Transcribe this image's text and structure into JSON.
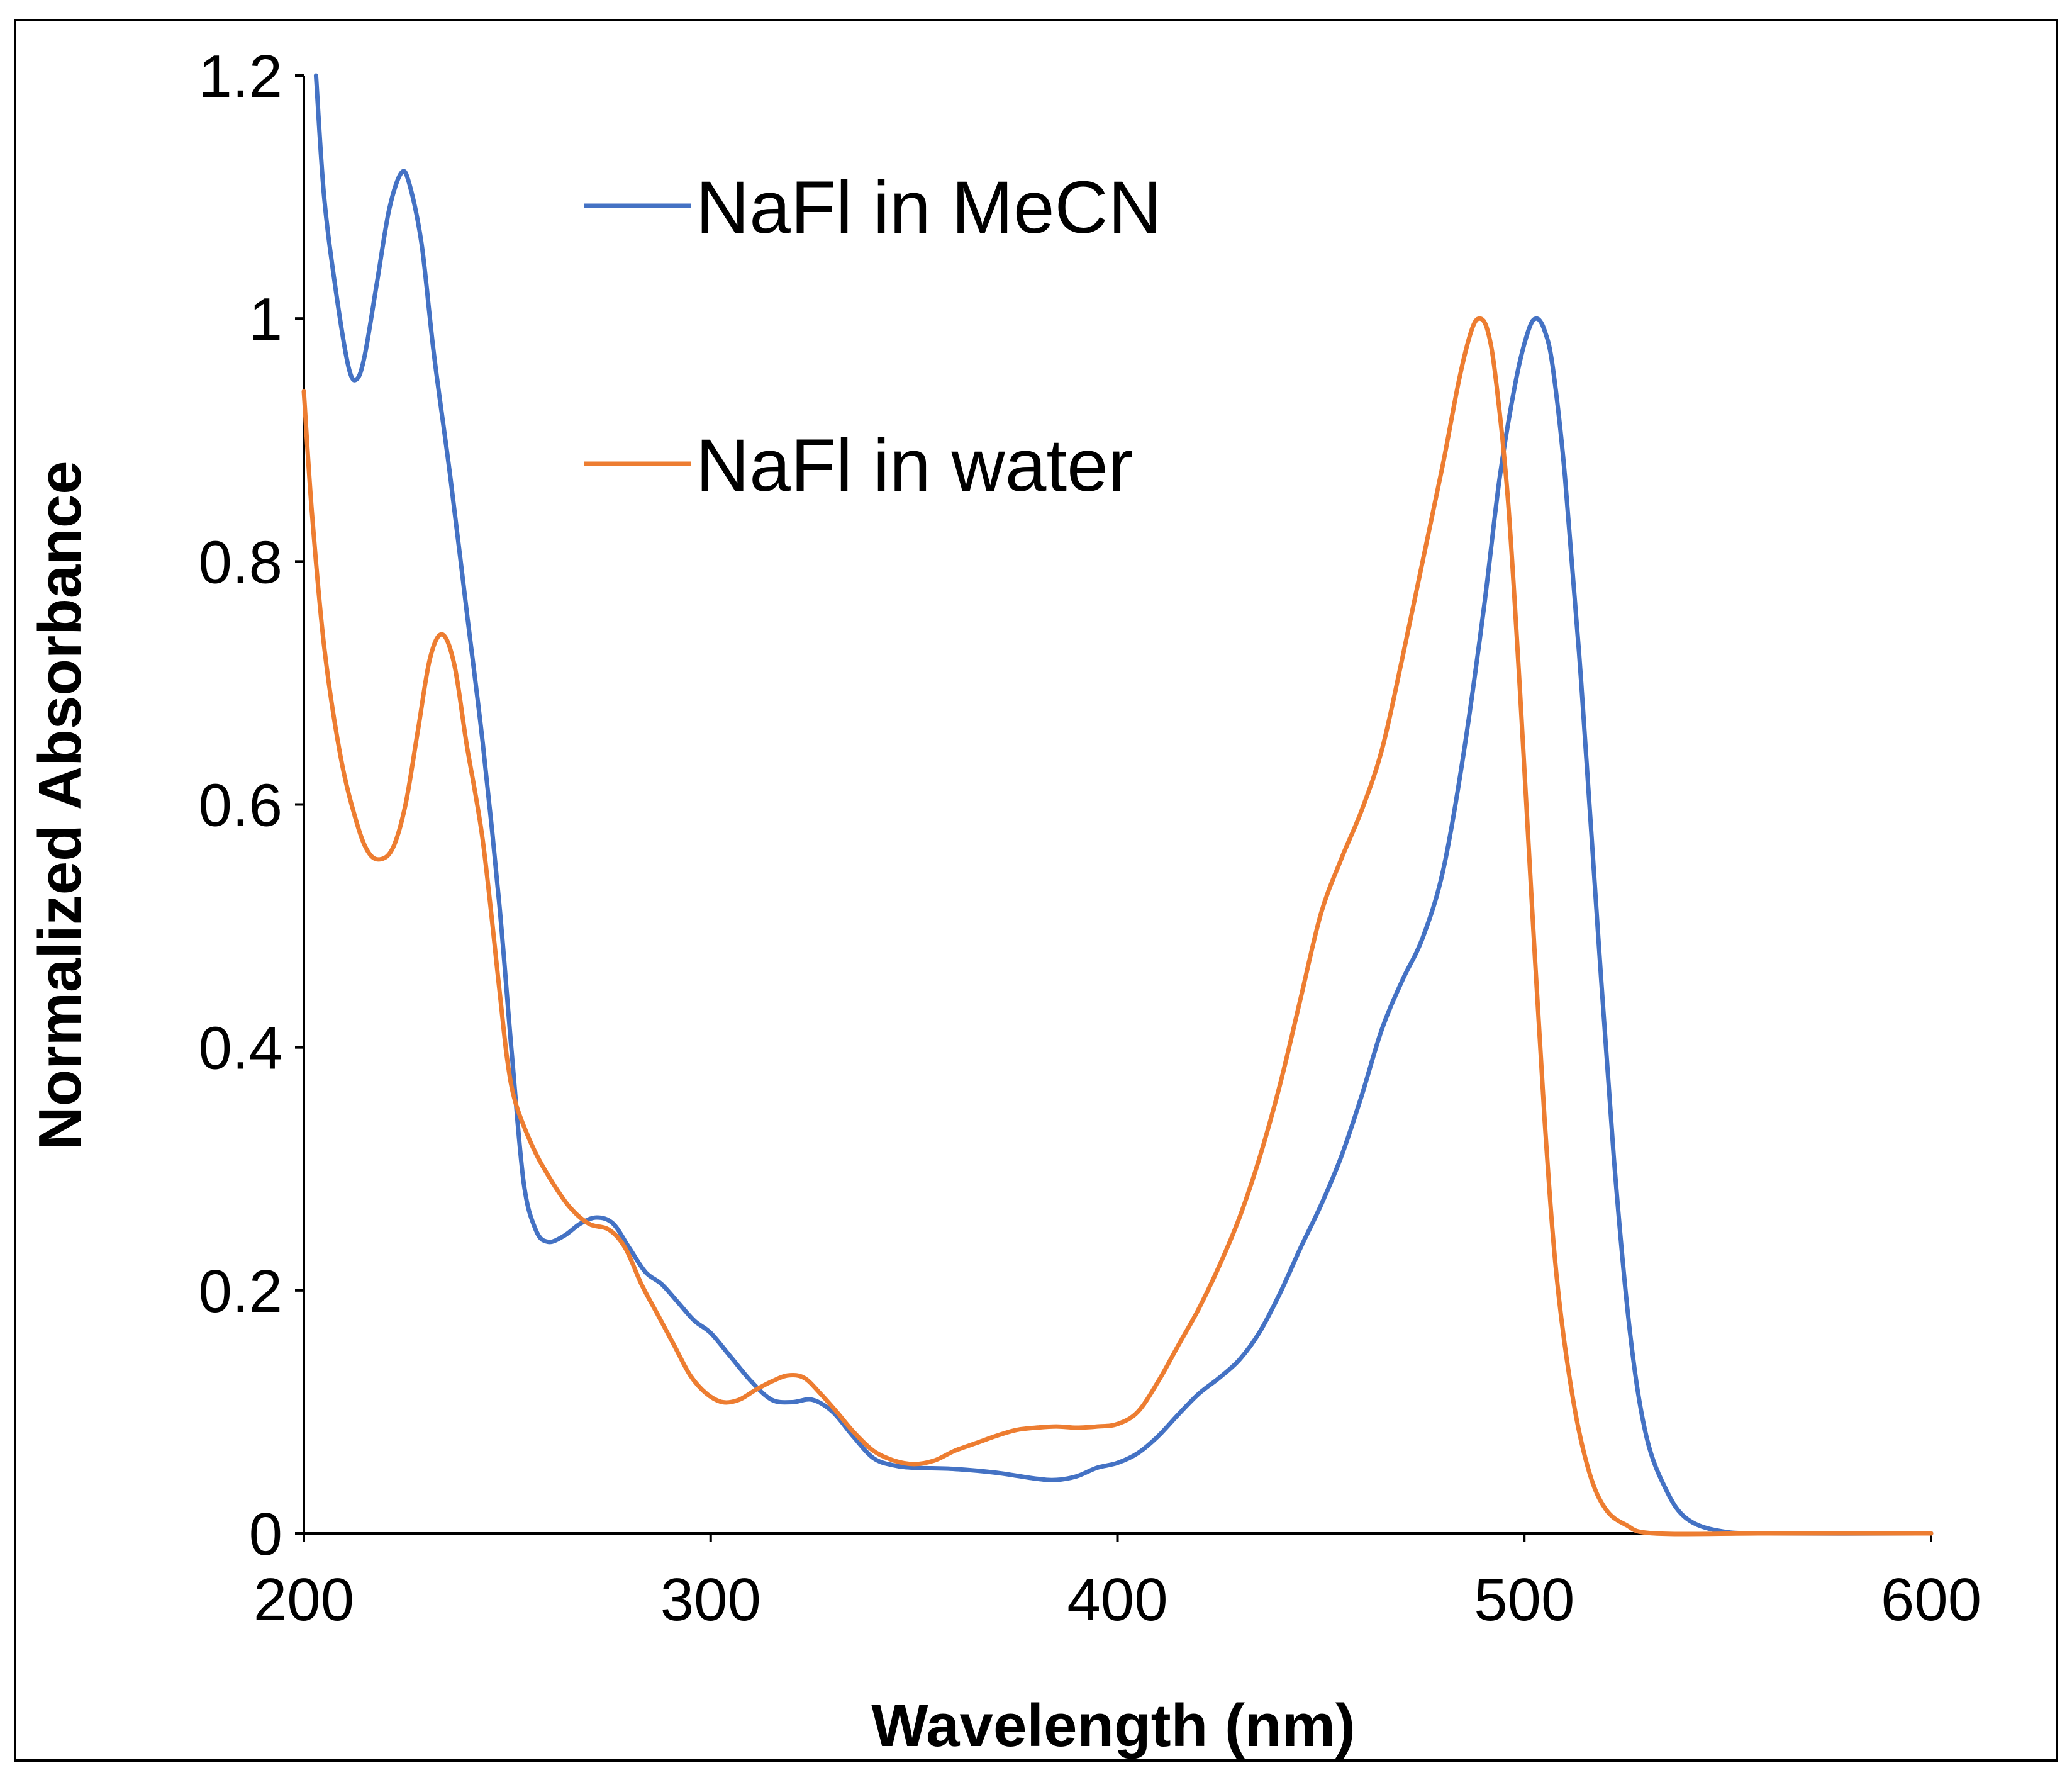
{
  "chart_data": {
    "type": "line",
    "title": "",
    "xlabel": "Wavelength (nm)",
    "ylabel": "Normalized Absorbance",
    "xlim": [
      200,
      600
    ],
    "ylim": [
      0,
      1.2
    ],
    "x_ticks": [
      200,
      300,
      400,
      500,
      600
    ],
    "x_tick_labels": [
      "200",
      "300",
      "400",
      "500",
      "600"
    ],
    "y_ticks": [
      0,
      0.2,
      0.4,
      0.6,
      0.8,
      1,
      1.2
    ],
    "y_tick_labels": [
      "0",
      "0.2",
      "0.4",
      "0.6",
      "0.8",
      "1",
      "1.2"
    ],
    "grid": false,
    "legend_position": "top-center",
    "series": [
      {
        "name": "NaFl in MeCN",
        "color": "#4472C4",
        "points": [
          [
            203,
            1.2
          ],
          [
            205,
            1.1
          ],
          [
            208,
            1.02
          ],
          [
            211,
            0.96
          ],
          [
            213,
            0.95
          ],
          [
            215,
            0.97
          ],
          [
            218,
            1.03
          ],
          [
            221,
            1.09
          ],
          [
            224,
            1.12
          ],
          [
            226,
            1.11
          ],
          [
            229,
            1.06
          ],
          [
            232,
            0.97
          ],
          [
            236,
            0.87
          ],
          [
            240,
            0.76
          ],
          [
            244,
            0.65
          ],
          [
            248,
            0.52
          ],
          [
            251,
            0.4
          ],
          [
            254,
            0.29
          ],
          [
            257,
            0.25
          ],
          [
            260,
            0.24
          ],
          [
            264,
            0.245
          ],
          [
            268,
            0.255
          ],
          [
            272,
            0.26
          ],
          [
            276,
            0.255
          ],
          [
            280,
            0.235
          ],
          [
            284,
            0.215
          ],
          [
            288,
            0.205
          ],
          [
            292,
            0.19
          ],
          [
            296,
            0.175
          ],
          [
            300,
            0.165
          ],
          [
            305,
            0.145
          ],
          [
            310,
            0.125
          ],
          [
            315,
            0.11
          ],
          [
            320,
            0.108
          ],
          [
            325,
            0.11
          ],
          [
            330,
            0.1
          ],
          [
            335,
            0.08
          ],
          [
            340,
            0.062
          ],
          [
            345,
            0.056
          ],
          [
            350,
            0.054
          ],
          [
            360,
            0.053
          ],
          [
            370,
            0.05
          ],
          [
            380,
            0.045
          ],
          [
            385,
            0.044
          ],
          [
            390,
            0.047
          ],
          [
            395,
            0.054
          ],
          [
            400,
            0.058
          ],
          [
            405,
            0.066
          ],
          [
            410,
            0.08
          ],
          [
            415,
            0.098
          ],
          [
            420,
            0.115
          ],
          [
            425,
            0.128
          ],
          [
            430,
            0.143
          ],
          [
            435,
            0.166
          ],
          [
            440,
            0.198
          ],
          [
            445,
            0.235
          ],
          [
            450,
            0.27
          ],
          [
            455,
            0.31
          ],
          [
            460,
            0.36
          ],
          [
            465,
            0.415
          ],
          [
            470,
            0.455
          ],
          [
            475,
            0.49
          ],
          [
            480,
            0.545
          ],
          [
            485,
            0.64
          ],
          [
            490,
            0.76
          ],
          [
            494,
            0.87
          ],
          [
            498,
            0.95
          ],
          [
            501,
            0.99
          ],
          [
            503,
            1.0
          ],
          [
            505,
            0.99
          ],
          [
            507,
            0.96
          ],
          [
            510,
            0.87
          ],
          [
            514,
            0.7
          ],
          [
            518,
            0.5
          ],
          [
            522,
            0.31
          ],
          [
            526,
            0.165
          ],
          [
            530,
            0.08
          ],
          [
            535,
            0.035
          ],
          [
            540,
            0.012
          ],
          [
            548,
            0.002
          ],
          [
            560,
            0.0
          ],
          [
            600,
            0.0
          ]
        ]
      },
      {
        "name": "NaFl in water",
        "color": "#ED7D31",
        "points": [
          [
            200,
            0.94
          ],
          [
            202,
            0.84
          ],
          [
            205,
            0.73
          ],
          [
            209,
            0.64
          ],
          [
            213,
            0.585
          ],
          [
            216,
            0.56
          ],
          [
            219,
            0.555
          ],
          [
            222,
            0.565
          ],
          [
            225,
            0.6
          ],
          [
            228,
            0.66
          ],
          [
            231,
            0.72
          ],
          [
            234,
            0.74
          ],
          [
            237,
            0.715
          ],
          [
            240,
            0.65
          ],
          [
            244,
            0.57
          ],
          [
            248,
            0.45
          ],
          [
            250,
            0.39
          ],
          [
            252,
            0.355
          ],
          [
            256,
            0.32
          ],
          [
            260,
            0.295
          ],
          [
            265,
            0.27
          ],
          [
            270,
            0.255
          ],
          [
            275,
            0.25
          ],
          [
            279,
            0.235
          ],
          [
            283,
            0.205
          ],
          [
            287,
            0.18
          ],
          [
            291,
            0.155
          ],
          [
            295,
            0.13
          ],
          [
            299,
            0.115
          ],
          [
            303,
            0.108
          ],
          [
            307,
            0.11
          ],
          [
            311,
            0.118
          ],
          [
            315,
            0.125
          ],
          [
            319,
            0.13
          ],
          [
            323,
            0.128
          ],
          [
            327,
            0.115
          ],
          [
            331,
            0.1
          ],
          [
            335,
            0.084
          ],
          [
            340,
            0.068
          ],
          [
            345,
            0.06
          ],
          [
            350,
            0.057
          ],
          [
            355,
            0.06
          ],
          [
            360,
            0.068
          ],
          [
            365,
            0.074
          ],
          [
            370,
            0.08
          ],
          [
            375,
            0.085
          ],
          [
            380,
            0.087
          ],
          [
            385,
            0.088
          ],
          [
            390,
            0.087
          ],
          [
            395,
            0.088
          ],
          [
            400,
            0.09
          ],
          [
            405,
            0.1
          ],
          [
            410,
            0.125
          ],
          [
            415,
            0.155
          ],
          [
            420,
            0.185
          ],
          [
            425,
            0.22
          ],
          [
            430,
            0.26
          ],
          [
            435,
            0.31
          ],
          [
            440,
            0.37
          ],
          [
            445,
            0.44
          ],
          [
            450,
            0.51
          ],
          [
            455,
            0.555
          ],
          [
            460,
            0.595
          ],
          [
            465,
            0.645
          ],
          [
            470,
            0.72
          ],
          [
            475,
            0.8
          ],
          [
            480,
            0.88
          ],
          [
            484,
            0.95
          ],
          [
            487,
            0.99
          ],
          [
            489,
            1.0
          ],
          [
            491,
            0.99
          ],
          [
            493,
            0.95
          ],
          [
            496,
            0.85
          ],
          [
            499,
            0.69
          ],
          [
            502,
            0.51
          ],
          [
            505,
            0.34
          ],
          [
            508,
            0.21
          ],
          [
            512,
            0.11
          ],
          [
            516,
            0.05
          ],
          [
            520,
            0.02
          ],
          [
            525,
            0.007
          ],
          [
            532,
            0.0
          ],
          [
            560,
            0.0
          ],
          [
            600,
            0.0
          ]
        ]
      }
    ]
  }
}
